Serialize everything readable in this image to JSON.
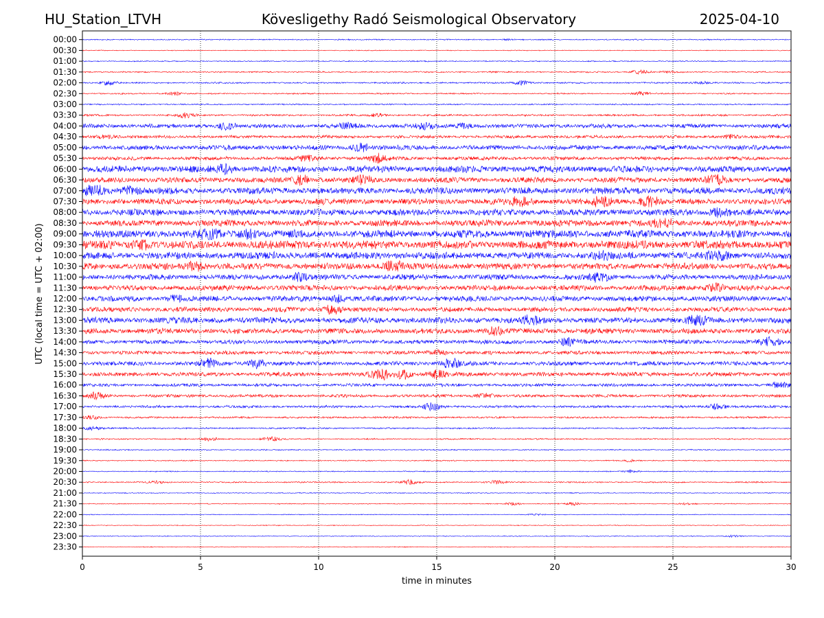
{
  "header": {
    "station": "HU_Station_LTVH",
    "observatory": "Kövesligethy Radó Seismological Observatory",
    "date": "2025-04-10"
  },
  "chart_data": {
    "type": "line",
    "title": "Kövesligethy Radó Seismological Observatory",
    "xlabel": "time in minutes",
    "ylabel": "UTC (local time = UTC + 02:00)",
    "xlim": [
      0,
      30
    ],
    "x_ticks": [
      "0",
      "5",
      "10",
      "15",
      "20",
      "25",
      "30"
    ],
    "x_tick_values": [
      0,
      5,
      10,
      15,
      20,
      25,
      30
    ],
    "grid": "vertical dotted lines at each x tick",
    "trace_colors": [
      "#0000ff",
      "#ff0000"
    ],
    "row_labels": [
      "00:00",
      "00:30",
      "01:00",
      "01:30",
      "02:00",
      "02:30",
      "03:00",
      "03:30",
      "04:00",
      "04:30",
      "05:00",
      "05:30",
      "06:00",
      "06:30",
      "07:00",
      "07:30",
      "08:00",
      "08:30",
      "09:00",
      "09:30",
      "10:00",
      "10:30",
      "11:00",
      "11:30",
      "12:00",
      "12:30",
      "13:00",
      "13:30",
      "14:00",
      "14:30",
      "15:00",
      "15:30",
      "16:00",
      "16:30",
      "17:00",
      "17:30",
      "18:00",
      "18:30",
      "19:00",
      "19:30",
      "20:00",
      "20:30",
      "21:00",
      "21:30",
      "22:00",
      "22:30",
      "23:00",
      "23:30"
    ],
    "series": [
      {
        "row": 0,
        "level": 0.08,
        "bursts": [
          {
            "t": 18.0,
            "a": 0.08
          }
        ]
      },
      {
        "row": 1,
        "level": 0.05,
        "bursts": []
      },
      {
        "row": 2,
        "level": 0.08,
        "bursts": []
      },
      {
        "row": 3,
        "level": 0.1,
        "bursts": [
          {
            "t": 23.6,
            "a": 0.35
          },
          {
            "t": 24.8,
            "a": 0.12
          }
        ]
      },
      {
        "row": 4,
        "level": 0.12,
        "bursts": [
          {
            "t": 1.1,
            "a": 0.4
          },
          {
            "t": 18.6,
            "a": 0.35
          },
          {
            "t": 26.2,
            "a": 0.2
          }
        ]
      },
      {
        "row": 5,
        "level": 0.1,
        "bursts": [
          {
            "t": 3.9,
            "a": 0.25
          },
          {
            "t": 23.7,
            "a": 0.3
          }
        ]
      },
      {
        "row": 6,
        "level": 0.1,
        "bursts": []
      },
      {
        "row": 7,
        "level": 0.15,
        "bursts": [
          {
            "t": 4.4,
            "a": 0.4
          },
          {
            "t": 12.5,
            "a": 0.3
          }
        ]
      },
      {
        "row": 8,
        "level": 0.35,
        "bursts": [
          {
            "t": 6.1,
            "a": 0.6
          },
          {
            "t": 11.3,
            "a": 0.4
          },
          {
            "t": 14.5,
            "a": 0.4
          },
          {
            "t": 16.2,
            "a": 0.35
          }
        ]
      },
      {
        "row": 9,
        "level": 0.25,
        "bursts": [
          {
            "t": 1.0,
            "a": 0.3
          },
          {
            "t": 27.4,
            "a": 0.3
          }
        ]
      },
      {
        "row": 10,
        "level": 0.4,
        "bursts": [
          {
            "t": 11.8,
            "a": 0.6
          }
        ]
      },
      {
        "row": 11,
        "level": 0.3,
        "bursts": [
          {
            "t": 12.5,
            "a": 0.8
          },
          {
            "t": 9.5,
            "a": 0.4
          }
        ]
      },
      {
        "row": 12,
        "level": 0.55,
        "bursts": [
          {
            "t": 6.0,
            "a": 0.6
          }
        ]
      },
      {
        "row": 13,
        "level": 0.45,
        "bursts": [
          {
            "t": 9.3,
            "a": 0.9
          },
          {
            "t": 11.9,
            "a": 0.8
          },
          {
            "t": 26.8,
            "a": 0.9
          }
        ]
      },
      {
        "row": 14,
        "level": 0.55,
        "bursts": [
          {
            "t": 0.5,
            "a": 1.0
          },
          {
            "t": 2.0,
            "a": 0.6
          }
        ]
      },
      {
        "row": 15,
        "level": 0.5,
        "bursts": [
          {
            "t": 22.0,
            "a": 1.0
          },
          {
            "t": 24.0,
            "a": 1.0
          },
          {
            "t": 18.5,
            "a": 0.6
          }
        ]
      },
      {
        "row": 16,
        "level": 0.55,
        "bursts": [
          {
            "t": 27.0,
            "a": 0.7
          }
        ]
      },
      {
        "row": 17,
        "level": 0.55,
        "bursts": [
          {
            "t": 24.6,
            "a": 0.7
          }
        ]
      },
      {
        "row": 18,
        "level": 0.65,
        "bursts": [
          {
            "t": 5.4,
            "a": 1.0
          },
          {
            "t": 7.0,
            "a": 0.7
          }
        ]
      },
      {
        "row": 19,
        "level": 0.7,
        "bursts": [
          {
            "t": 2.5,
            "a": 0.7
          }
        ]
      },
      {
        "row": 20,
        "level": 0.6,
        "bursts": [
          {
            "t": 26.9,
            "a": 0.8
          },
          {
            "t": 22.0,
            "a": 0.5
          }
        ]
      },
      {
        "row": 21,
        "level": 0.55,
        "bursts": [
          {
            "t": 13.2,
            "a": 1.0
          },
          {
            "t": 4.8,
            "a": 0.6
          }
        ]
      },
      {
        "row": 22,
        "level": 0.45,
        "bursts": [
          {
            "t": 9.1,
            "a": 0.6
          },
          {
            "t": 21.9,
            "a": 0.7
          }
        ]
      },
      {
        "row": 23,
        "level": 0.45,
        "bursts": [
          {
            "t": 26.8,
            "a": 0.6
          }
        ]
      },
      {
        "row": 24,
        "level": 0.45,
        "bursts": [
          {
            "t": 4.0,
            "a": 0.5
          },
          {
            "t": 10.8,
            "a": 0.5
          }
        ]
      },
      {
        "row": 25,
        "level": 0.4,
        "bursts": [
          {
            "t": 10.6,
            "a": 0.8
          }
        ]
      },
      {
        "row": 26,
        "level": 0.5,
        "bursts": [
          {
            "t": 26.0,
            "a": 0.8
          },
          {
            "t": 19.0,
            "a": 0.6
          }
        ]
      },
      {
        "row": 27,
        "level": 0.45,
        "bursts": [
          {
            "t": 17.5,
            "a": 0.5
          }
        ]
      },
      {
        "row": 28,
        "level": 0.35,
        "bursts": [
          {
            "t": 29.1,
            "a": 0.9
          },
          {
            "t": 20.5,
            "a": 0.5
          }
        ]
      },
      {
        "row": 29,
        "level": 0.3,
        "bursts": [
          {
            "t": 15.0,
            "a": 0.4
          }
        ]
      },
      {
        "row": 30,
        "level": 0.35,
        "bursts": [
          {
            "t": 5.3,
            "a": 0.7
          },
          {
            "t": 7.4,
            "a": 0.7
          },
          {
            "t": 15.6,
            "a": 0.8
          }
        ]
      },
      {
        "row": 31,
        "level": 0.35,
        "bursts": [
          {
            "t": 12.6,
            "a": 1.0
          },
          {
            "t": 13.6,
            "a": 0.7
          },
          {
            "t": 15.0,
            "a": 0.6
          }
        ]
      },
      {
        "row": 32,
        "level": 0.25,
        "bursts": [
          {
            "t": 29.5,
            "a": 0.5
          }
        ]
      },
      {
        "row": 33,
        "level": 0.25,
        "bursts": [
          {
            "t": 0.6,
            "a": 0.5
          },
          {
            "t": 17.0,
            "a": 0.4
          }
        ]
      },
      {
        "row": 34,
        "level": 0.2,
        "bursts": [
          {
            "t": 14.8,
            "a": 0.6
          },
          {
            "t": 26.9,
            "a": 0.5
          }
        ]
      },
      {
        "row": 35,
        "level": 0.15,
        "bursts": [
          {
            "t": 0.4,
            "a": 0.3
          }
        ]
      },
      {
        "row": 36,
        "level": 0.12,
        "bursts": [
          {
            "t": 0.4,
            "a": 0.3
          }
        ]
      },
      {
        "row": 37,
        "level": 0.1,
        "bursts": [
          {
            "t": 5.4,
            "a": 0.3
          },
          {
            "t": 8.0,
            "a": 0.35
          }
        ]
      },
      {
        "row": 38,
        "level": 0.08,
        "bursts": []
      },
      {
        "row": 39,
        "level": 0.08,
        "bursts": [
          {
            "t": 23.2,
            "a": 0.2
          }
        ]
      },
      {
        "row": 40,
        "level": 0.07,
        "bursts": [
          {
            "t": 23.2,
            "a": 0.2
          }
        ]
      },
      {
        "row": 41,
        "level": 0.1,
        "bursts": [
          {
            "t": 13.9,
            "a": 0.4
          },
          {
            "t": 17.6,
            "a": 0.3
          },
          {
            "t": 3.2,
            "a": 0.2
          }
        ]
      },
      {
        "row": 42,
        "level": 0.06,
        "bursts": []
      },
      {
        "row": 43,
        "level": 0.06,
        "bursts": [
          {
            "t": 18.2,
            "a": 0.25
          },
          {
            "t": 20.8,
            "a": 0.25
          },
          {
            "t": 25.6,
            "a": 0.15
          }
        ]
      },
      {
        "row": 44,
        "level": 0.05,
        "bursts": [
          {
            "t": 19.2,
            "a": 0.12
          }
        ]
      },
      {
        "row": 45,
        "level": 0.05,
        "bursts": []
      },
      {
        "row": 46,
        "level": 0.05,
        "bursts": [
          {
            "t": 27.5,
            "a": 0.15
          }
        ]
      },
      {
        "row": 47,
        "level": 0.05,
        "bursts": []
      }
    ]
  }
}
